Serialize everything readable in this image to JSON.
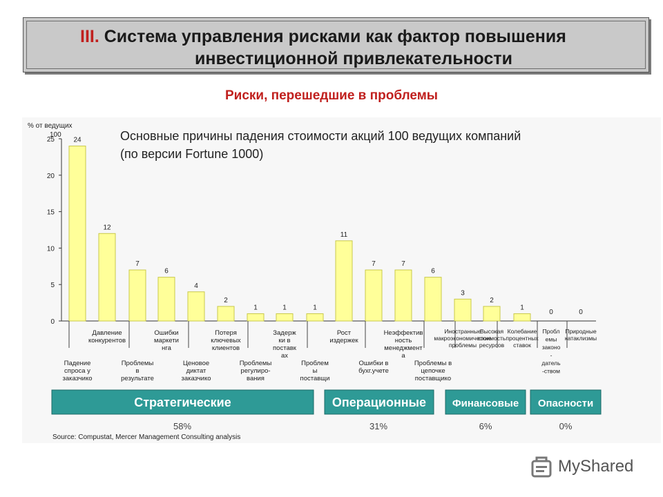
{
  "header": {
    "title_num": "III.",
    "title_line1": "Система управления рисками как фактор повышения",
    "title_line2": "инвестиционной привлекательности",
    "subtitle": "Риски, перешедшие в проблемы"
  },
  "colors": {
    "bar_fill": "#ffff99",
    "bar_stroke": "#c8c84a",
    "group_fill": "#2e9a96",
    "accent_red": "#c0201e"
  },
  "chart_data": {
    "type": "bar",
    "title_line1": "Основные причины падения стоимости акций 100 ведущих компаний",
    "title_line2": "(по версии Fortune 1000)",
    "ylabel": "% от ведущих 100",
    "ylim": [
      0,
      25
    ],
    "yticks": [
      "0",
      "5",
      "10",
      "15",
      "20",
      "25"
    ],
    "categories": [
      "Падение спроса у заказчико",
      "Давление конкурентов",
      "Проблемы в результате",
      "Ошибки маркети нга",
      "Ценовое диктат заказчико",
      "Потеря ключевых клиентов",
      "Проблемы регулиро- вания",
      "Задерж ки в поставк ах",
      "Проблем ы поставщи",
      "Рост издержек",
      "Ошибки в бухг.учете",
      "Неэффектив ность менеджмент а",
      "Проблемы в цепочке поставщико",
      "Иностранные макроэкономические проблемы",
      "Высокая стоимость ресурсов",
      "Колебание процентных ставок",
      "Проблемы законо -датель -ством",
      "Природные катаклизмы"
    ],
    "values": [
      24,
      12,
      7,
      6,
      4,
      2,
      1,
      1,
      1,
      11,
      7,
      7,
      6,
      3,
      2,
      1,
      0,
      0
    ],
    "value_labels": [
      "24",
      "12",
      "7",
      "6",
      "4",
      "2",
      "1",
      "1",
      "1",
      "11",
      "7",
      "7",
      "6",
      "3",
      "2",
      "1",
      "0",
      "0"
    ],
    "cat_lines": [
      [
        "Падение",
        "спроса у",
        "заказчико"
      ],
      [
        "Давление",
        "конкурентов"
      ],
      [
        "Проблемы",
        "в",
        "результате"
      ],
      [
        "Ошибки",
        "маркети",
        "нга"
      ],
      [
        "Ценовое",
        "диктат",
        "заказчико"
      ],
      [
        "Потеря",
        "ключевых",
        "клиентов"
      ],
      [
        "Проблемы",
        "регулиро-",
        "вания"
      ],
      [
        "Задерж",
        "ки в",
        "поставк",
        "ах"
      ],
      [
        "Проблем",
        "ы",
        "поставщи"
      ],
      [
        "Рост",
        "издержек"
      ],
      [
        "Ошибки в",
        "бухг.учете"
      ],
      [
        "Неэффектив",
        "ность",
        "менеджмент",
        "а"
      ],
      [
        "Проблемы в",
        "цепочке",
        "поставщико"
      ],
      [
        "Иностранные",
        "макроэкономические",
        "проблемы"
      ],
      [
        "Высокая",
        "стоимость",
        "ресурсов"
      ],
      [
        "Колебание",
        "процентных",
        "ставок"
      ],
      [
        "Пробл",
        "емы",
        "законо",
        "-",
        "датель",
        "-ством"
      ],
      [
        "Природные",
        "катаклизмы"
      ]
    ],
    "groups": [
      {
        "name": "Стратегические",
        "share": "58%"
      },
      {
        "name": "Операционные",
        "share": "31%"
      },
      {
        "name": "Финансовые",
        "share": "6%"
      },
      {
        "name": "Опасности",
        "share": "0%"
      }
    ],
    "source": "Source: Compustat, Mercer Management Consulting analysis"
  },
  "brand": {
    "name": "MyShared"
  }
}
